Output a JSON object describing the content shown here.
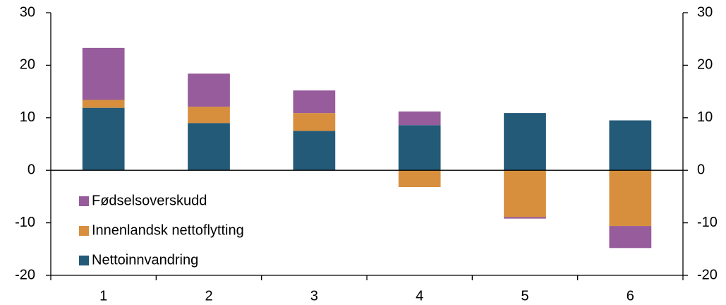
{
  "chart_data": {
    "type": "stacked-bar",
    "categories": [
      "1",
      "2",
      "3",
      "4",
      "5",
      "6"
    ],
    "series": [
      {
        "name": "Nettoinnvandring",
        "color": "#235a78",
        "values": [
          11.9,
          9.0,
          7.5,
          8.6,
          10.9,
          9.5
        ]
      },
      {
        "name": "Innenlandsk nettoflytting",
        "color": "#d78f3e",
        "values": [
          1.5,
          3.1,
          3.4,
          -3.2,
          -8.9,
          -10.6
        ]
      },
      {
        "name": "Fødselsoverskudd",
        "color": "#975c9b",
        "values": [
          9.9,
          6.3,
          4.3,
          2.6,
          -0.3,
          -4.2
        ]
      }
    ],
    "ylim": [
      -20,
      30
    ],
    "yticks": [
      -20,
      -10,
      0,
      10,
      20,
      30
    ],
    "y2lim": [
      -20,
      30
    ],
    "y2ticks": [
      -20,
      -10,
      0,
      10,
      20,
      30
    ],
    "legend": "lower-left"
  }
}
